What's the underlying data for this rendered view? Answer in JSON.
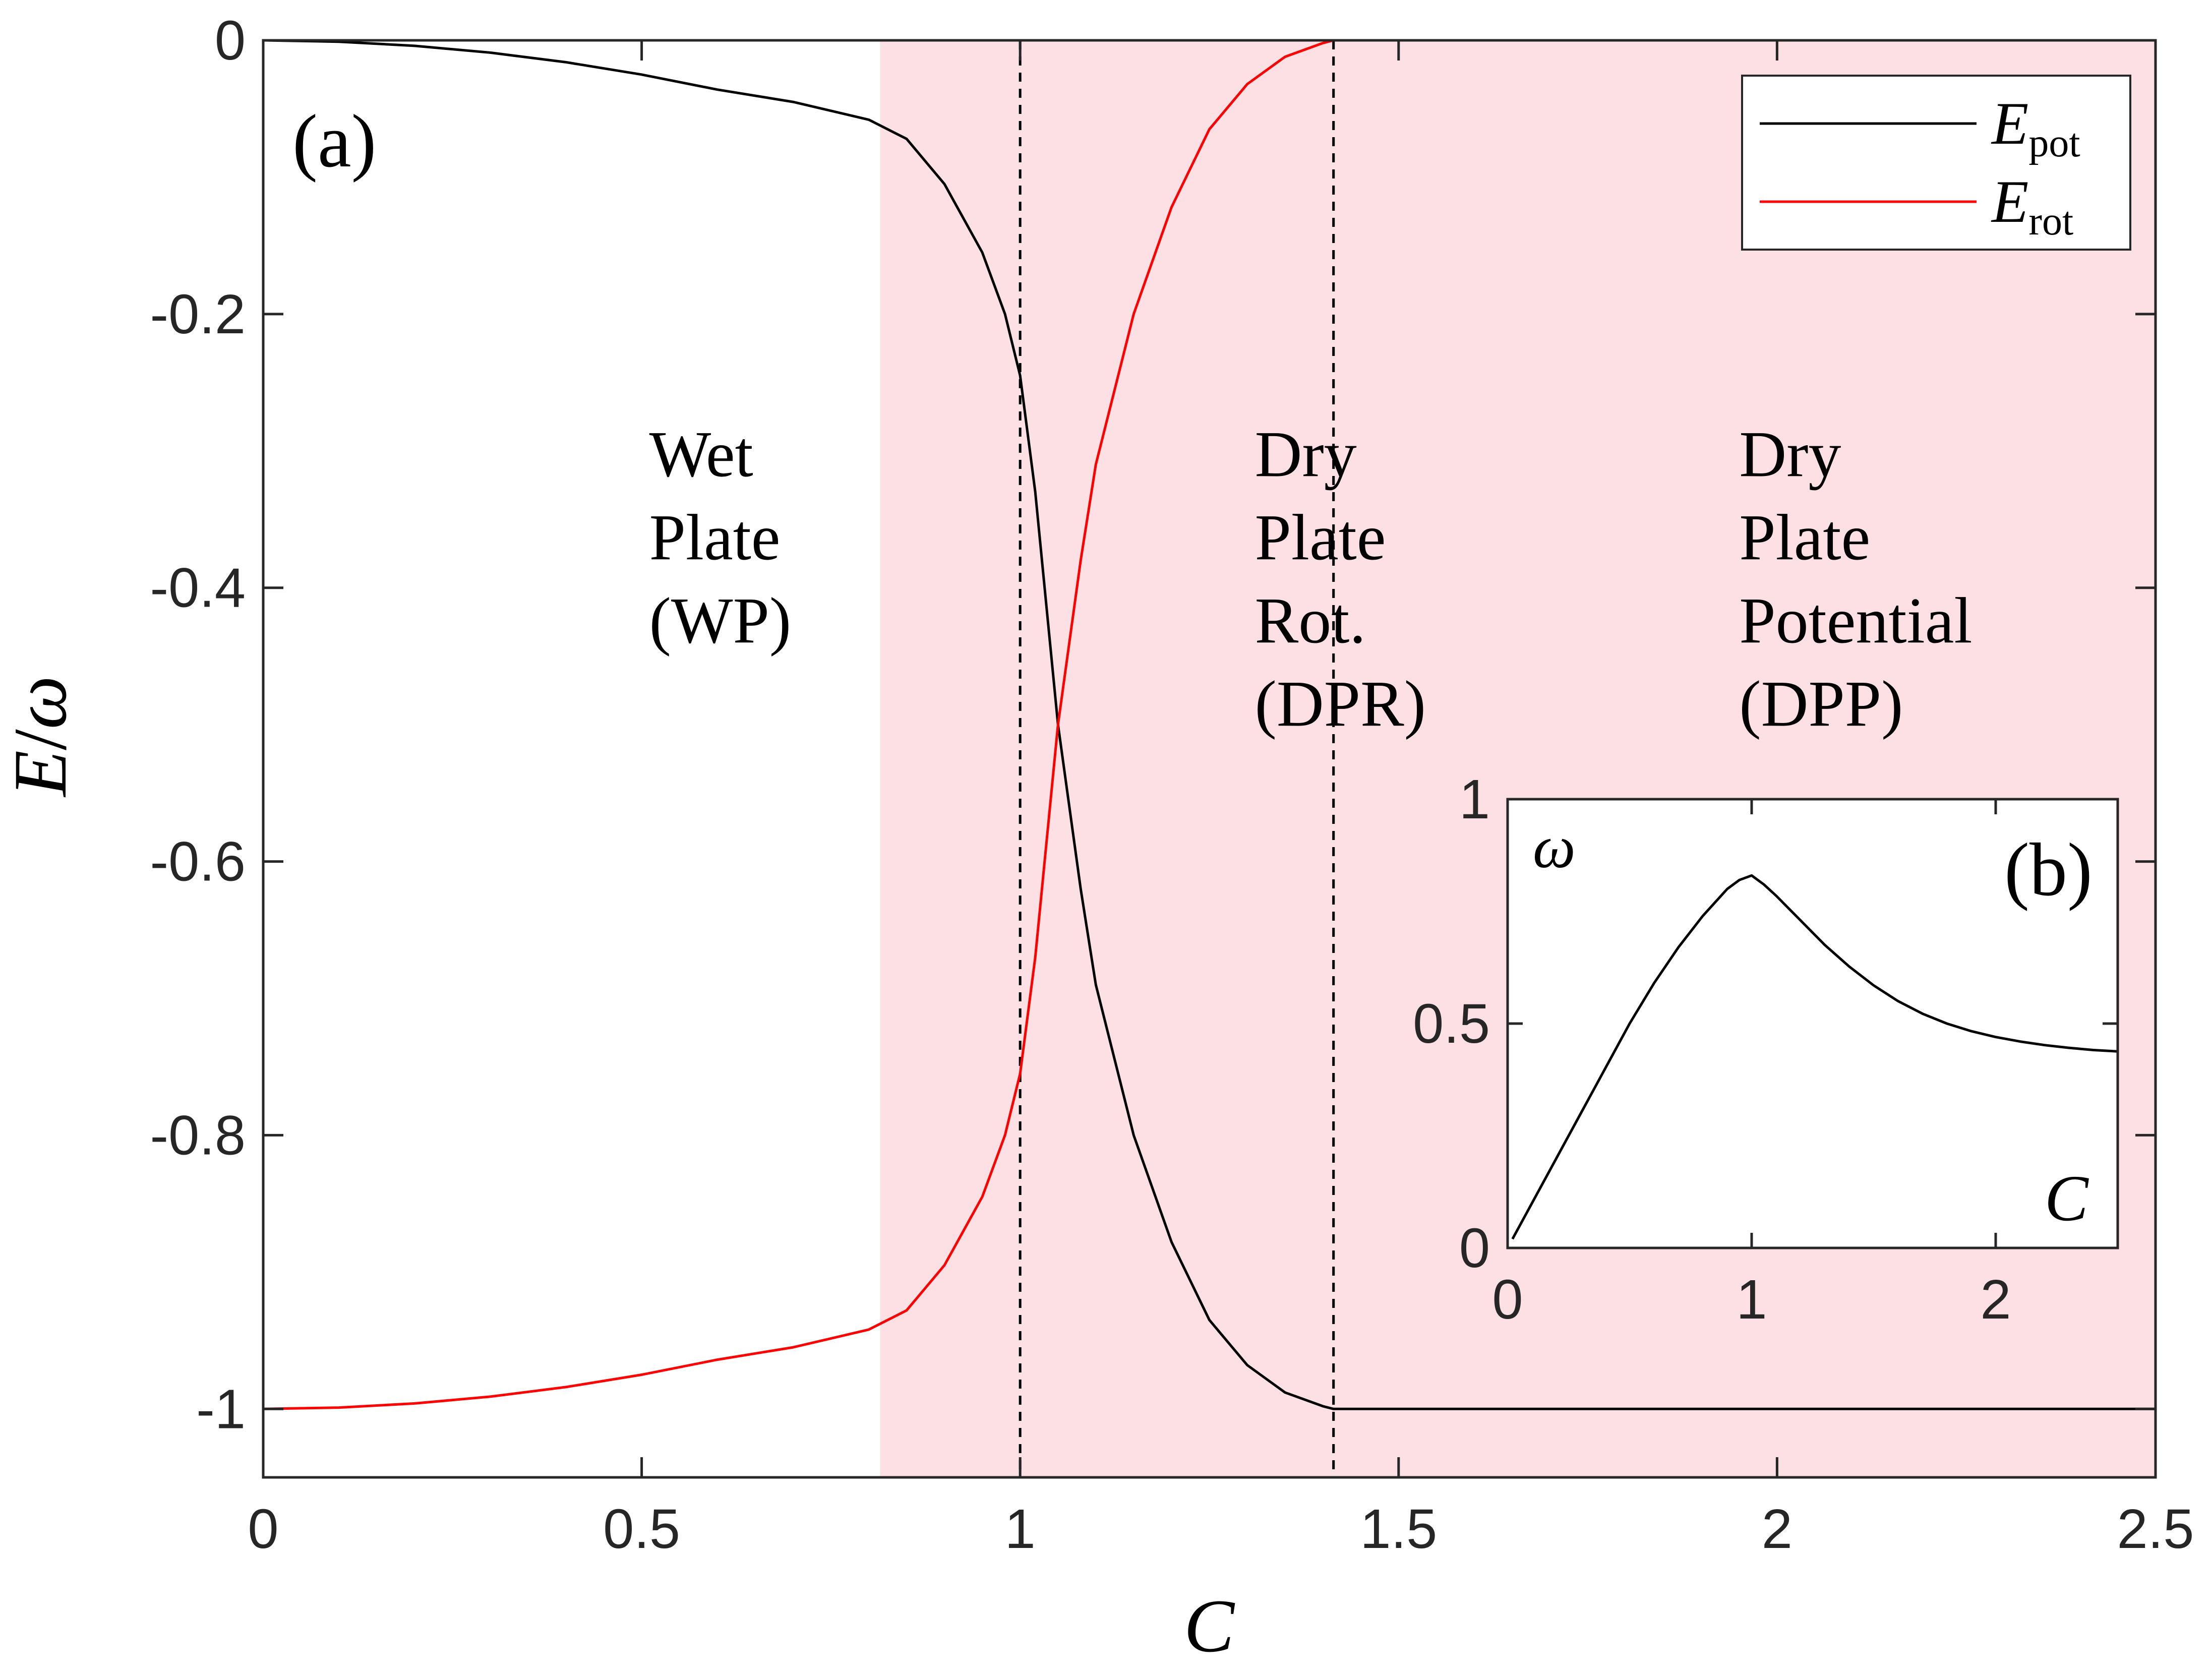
{
  "chart_data": [
    {
      "panel_label": "(a)",
      "type": "line",
      "xlabel": "C",
      "ylabel_num": "E",
      "ylabel_sep": "/",
      "ylabel_den": "ω",
      "xlim": [
        0,
        2.5
      ],
      "ylim": [
        -1.05,
        0
      ],
      "xticks": [
        0,
        0.5,
        1,
        1.5,
        2,
        2.5
      ],
      "xtick_labels": [
        "0",
        "0.5",
        "1",
        "1.5",
        "2",
        "2.5"
      ],
      "yticks": [
        0,
        -0.2,
        -0.4,
        -0.6,
        -0.8,
        -1
      ],
      "ytick_labels": [
        "0",
        "-0.2",
        "-0.4",
        "-0.6",
        "-0.8",
        "-1"
      ],
      "shaded_region": {
        "x_start": 0.815,
        "x_end": 2.5,
        "color": "#fde0e4"
      },
      "dashed_lines_x": [
        1.0,
        1.414
      ],
      "regions": [
        {
          "lines": [
            "Wet",
            "Plate",
            "(WP)"
          ],
          "x": 0.51,
          "y_top": -0.3
        },
        {
          "lines": [
            "Dry",
            "Plate",
            "Rot.",
            "(DPR)"
          ],
          "x": 1.31,
          "y_top": -0.3
        },
        {
          "lines": [
            "Dry",
            "Plate",
            "Potential",
            "(DPP)"
          ],
          "x": 1.95,
          "y_top": -0.3
        }
      ],
      "series": [
        {
          "name": "E_pot",
          "label_main": "E",
          "label_sub": "pot",
          "color": "#000000",
          "x": [
            0,
            0.1,
            0.2,
            0.3,
            0.4,
            0.5,
            0.6,
            0.7,
            0.8,
            0.85,
            0.9,
            0.95,
            0.98,
            1.0,
            1.02,
            1.05,
            1.08,
            1.1,
            1.15,
            1.2,
            1.25,
            1.3,
            1.35,
            1.4,
            1.414,
            1.5,
            2.0,
            2.5
          ],
          "y": [
            0,
            -0.001,
            -0.004,
            -0.009,
            -0.016,
            -0.025,
            -0.036,
            -0.045,
            -0.058,
            -0.072,
            -0.105,
            -0.155,
            -0.2,
            -0.245,
            -0.33,
            -0.5,
            -0.62,
            -0.69,
            -0.8,
            -0.878,
            -0.935,
            -0.968,
            -0.988,
            -0.998,
            -1.0,
            -1.0,
            -1.0,
            -1.0
          ]
        },
        {
          "name": "E_rot",
          "label_main": "E",
          "label_sub": "rot",
          "color": "#ff0000",
          "x": [
            0,
            0.1,
            0.2,
            0.3,
            0.4,
            0.5,
            0.6,
            0.7,
            0.8,
            0.85,
            0.9,
            0.95,
            0.98,
            1.0,
            1.02,
            1.05,
            1.08,
            1.1,
            1.15,
            1.2,
            1.25,
            1.3,
            1.35,
            1.4,
            1.414,
            1.5,
            2.0,
            2.5
          ],
          "y": [
            -1.0,
            -0.999,
            -0.996,
            -0.991,
            -0.984,
            -0.975,
            -0.964,
            -0.955,
            -0.942,
            -0.928,
            -0.895,
            -0.845,
            -0.8,
            -0.755,
            -0.67,
            -0.5,
            -0.38,
            -0.31,
            -0.2,
            -0.122,
            -0.065,
            -0.032,
            -0.012,
            -0.002,
            0,
            0,
            0,
            0
          ]
        }
      ]
    },
    {
      "panel_label": "(b)",
      "type": "line",
      "xlabel": "C",
      "ylabel": "ω",
      "xlim": [
        0,
        2.5
      ],
      "ylim": [
        0,
        1
      ],
      "xticks": [
        0,
        1,
        2
      ],
      "xtick_labels": [
        "0",
        "1",
        "2"
      ],
      "yticks": [
        0,
        0.5,
        1
      ],
      "ytick_labels": [
        "0",
        "0.5",
        "1"
      ],
      "series": [
        {
          "name": "omega",
          "color": "#000000",
          "x": [
            0.02,
            0.1,
            0.2,
            0.3,
            0.4,
            0.5,
            0.6,
            0.7,
            0.8,
            0.9,
            0.95,
            1.0,
            1.05,
            1.1,
            1.2,
            1.3,
            1.4,
            1.5,
            1.6,
            1.7,
            1.8,
            1.9,
            2.0,
            2.1,
            2.2,
            2.3,
            2.4,
            2.5
          ],
          "y": [
            0.02,
            0.1,
            0.2,
            0.3,
            0.4,
            0.5,
            0.59,
            0.67,
            0.74,
            0.8,
            0.82,
            0.83,
            0.81,
            0.785,
            0.73,
            0.675,
            0.627,
            0.585,
            0.55,
            0.522,
            0.5,
            0.483,
            0.47,
            0.46,
            0.452,
            0.446,
            0.441,
            0.438
          ]
        }
      ]
    }
  ]
}
